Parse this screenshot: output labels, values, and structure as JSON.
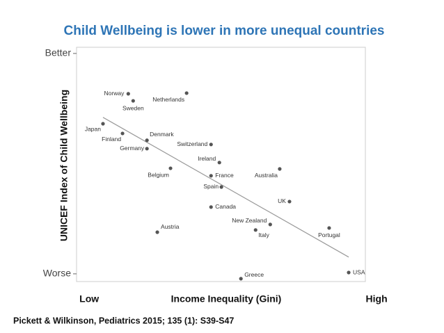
{
  "chart_data": {
    "type": "scatter",
    "title": "Child Wellbeing is lower in more unequal countries",
    "x_label": "Income Inequality (Gini)",
    "y_label": "UNICEF Index of Child Wellbeing",
    "source": "Pickett & Wilkinson, Pediatrics 2015; 135 (1): S39-S47",
    "labels": [
      "Norway",
      "Sweden",
      "Netherlands",
      "Japan",
      "Finland",
      "Denmark",
      "Germany",
      "Switzerland",
      "Ireland",
      "Belgium",
      "France",
      "Australia",
      "Spain",
      "UK",
      "Canada",
      "New Zealand",
      "Italy",
      "Portugal",
      "Austria",
      "USA",
      "Greece"
    ],
    "x": [
      13.6,
      15.3,
      33.9,
      4.8,
      11.6,
      20.1,
      20.1,
      42.4,
      45.3,
      28.3,
      42.4,
      66.3,
      46.0,
      69.7,
      42.4,
      63.0,
      57.9,
      83.5,
      23.7,
      90.3,
      52.8
    ],
    "values": [
      81.7,
      78.5,
      82.0,
      68.1,
      63.7,
      60.6,
      56.8,
      58.7,
      50.5,
      47.9,
      44.5,
      47.6,
      39.4,
      32.8,
      30.3,
      22.4,
      19.9,
      20.8,
      18.9,
      0.6,
      -2.2
    ],
    "color": "#555555",
    "trendline": {
      "x": [
        4.8,
        90.3
      ],
      "y": [
        71.0,
        7.6
      ],
      "color": "#999999"
    },
    "xlim": [
      -4.4,
      96.1
    ],
    "ylim": [
      -3.5,
      102.8
    ],
    "xticks": [
      {
        "value": 0,
        "label": "Low"
      },
      {
        "value": 100,
        "label": "High"
      }
    ],
    "yticks": [
      {
        "value": 100,
        "label": "Better"
      },
      {
        "value": 0,
        "label": "Worse"
      }
    ]
  }
}
